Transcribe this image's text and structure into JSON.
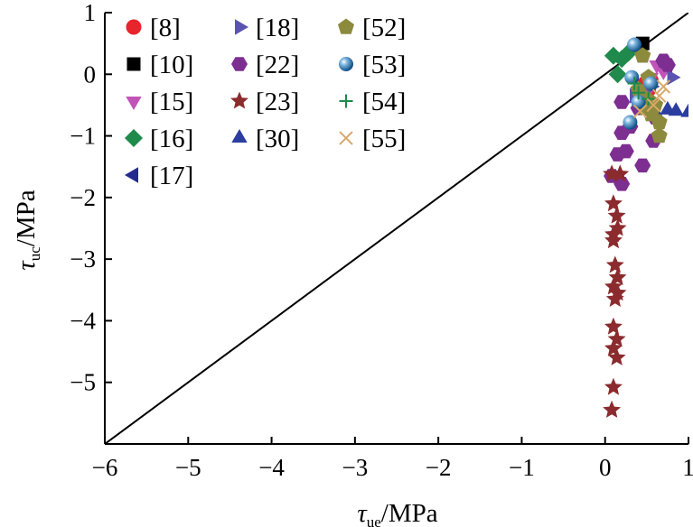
{
  "chart_data": {
    "type": "scatter",
    "title": "",
    "xlabel": {
      "symbol": "τ",
      "subscript": "ue",
      "unit": "/MPa"
    },
    "ylabel": {
      "symbol": "τ",
      "subscript": "uc",
      "unit": "/MPa"
    },
    "xlim": [
      -6,
      1
    ],
    "ylim": [
      -6,
      1
    ],
    "xticks": [
      -6,
      -5,
      -4,
      -3,
      -2,
      -1,
      0,
      1
    ],
    "yticks": [
      -5,
      -4,
      -3,
      -2,
      -1,
      0,
      1
    ],
    "xtick_labels": [
      "−6",
      "−5",
      "−4",
      "−3",
      "−2",
      "−1",
      "0",
      "1"
    ],
    "ytick_labels": [
      "−5",
      "−4",
      "−3",
      "−2",
      "−1",
      "0",
      "1"
    ],
    "reference_line": {
      "type": "y=x",
      "color": "#000000"
    },
    "legend_position": "top-left",
    "series": [
      {
        "name": "[8]",
        "marker": "circle",
        "color": "#e8242c",
        "points": [
          [
            0.48,
            -0.15
          ],
          [
            0.52,
            -0.25
          ],
          [
            0.55,
            -0.1
          ]
        ]
      },
      {
        "name": "[10]",
        "marker": "square",
        "color": "#000000",
        "points": [
          [
            0.45,
            0.5
          ]
        ]
      },
      {
        "name": "[15]",
        "marker": "triangle-down",
        "color": "#c154b8",
        "points": [
          [
            0.62,
            0.15
          ],
          [
            0.7,
            0.05
          ],
          [
            0.55,
            -0.05
          ],
          [
            0.5,
            -0.3
          ]
        ]
      },
      {
        "name": "[16]",
        "marker": "diamond",
        "color": "#1f8a4c",
        "points": [
          [
            0.1,
            0.3
          ],
          [
            0.2,
            0.25
          ],
          [
            0.15,
            0.0
          ],
          [
            0.28,
            0.35
          ]
        ]
      },
      {
        "name": "[17]",
        "marker": "triangle-left",
        "color": "#232a8e",
        "points": [
          [
            0.75,
            0.12
          ],
          [
            0.6,
            -0.55
          ],
          [
            0.45,
            -0.4
          ]
        ]
      },
      {
        "name": "[18]",
        "marker": "triangle-right",
        "color": "#5a54b0",
        "points": [
          [
            0.35,
            -0.35
          ],
          [
            0.8,
            -0.05
          ],
          [
            0.55,
            -0.2
          ]
        ]
      },
      {
        "name": "[22]",
        "marker": "hexagon",
        "color": "#7d2e91",
        "points": [
          [
            0.7,
            0.22
          ],
          [
            0.75,
            0.15
          ],
          [
            0.2,
            -0.45
          ],
          [
            0.4,
            -0.55
          ],
          [
            0.6,
            -0.7
          ],
          [
            0.2,
            -0.95
          ],
          [
            0.3,
            -0.85
          ],
          [
            0.58,
            -1.08
          ],
          [
            0.15,
            -1.3
          ],
          [
            0.45,
            -1.48
          ],
          [
            0.08,
            -1.65
          ],
          [
            0.2,
            -1.78
          ],
          [
            0.25,
            -1.25
          ]
        ]
      },
      {
        "name": "[23]",
        "marker": "star",
        "color": "#8b2b2e",
        "points": [
          [
            0.08,
            -1.62
          ],
          [
            0.18,
            -1.62
          ],
          [
            0.1,
            -2.1
          ],
          [
            0.14,
            -2.3
          ],
          [
            0.15,
            -2.5
          ],
          [
            0.1,
            -2.6
          ],
          [
            0.1,
            -2.7
          ],
          [
            0.12,
            -3.1
          ],
          [
            0.15,
            -3.3
          ],
          [
            0.1,
            -3.45
          ],
          [
            0.15,
            -3.55
          ],
          [
            0.12,
            -3.65
          ],
          [
            0.1,
            -4.1
          ],
          [
            0.14,
            -4.3
          ],
          [
            0.1,
            -4.45
          ],
          [
            0.14,
            -4.6
          ],
          [
            0.1,
            -5.08
          ],
          [
            0.08,
            -5.45
          ]
        ]
      },
      {
        "name": "[30]",
        "marker": "triangle-up",
        "color": "#2b3ea0",
        "points": [
          [
            0.85,
            -0.6
          ],
          [
            1.0,
            -0.62
          ],
          [
            0.75,
            -0.58
          ],
          [
            0.6,
            -0.62
          ]
        ]
      },
      {
        "name": "[52]",
        "marker": "pentagon",
        "color": "#8c8a3c",
        "points": [
          [
            0.4,
            -0.25
          ],
          [
            0.5,
            -0.4
          ],
          [
            0.6,
            -0.5
          ],
          [
            0.65,
            -0.78
          ],
          [
            0.55,
            -0.65
          ],
          [
            0.65,
            -1.0
          ],
          [
            0.52,
            -0.05
          ],
          [
            0.45,
            0.3
          ],
          [
            0.48,
            -0.55
          ]
        ]
      },
      {
        "name": "[53]",
        "marker": "sphere",
        "color": "#1e6fb0",
        "points": [
          [
            0.35,
            0.48
          ],
          [
            0.32,
            -0.05
          ],
          [
            0.3,
            -0.78
          ],
          [
            0.55,
            -0.15
          ],
          [
            0.4,
            -0.45
          ]
        ]
      },
      {
        "name": "[54]",
        "marker": "plus",
        "color": "#1f8a4c",
        "points": [
          [
            0.4,
            -0.3
          ],
          [
            0.52,
            -0.4
          ],
          [
            0.35,
            -0.15
          ]
        ]
      },
      {
        "name": "[55]",
        "marker": "x",
        "color": "#d8a86a",
        "points": [
          [
            0.58,
            -0.5
          ],
          [
            0.65,
            -0.35
          ],
          [
            0.42,
            -0.6
          ],
          [
            0.7,
            -0.2
          ]
        ]
      }
    ]
  }
}
